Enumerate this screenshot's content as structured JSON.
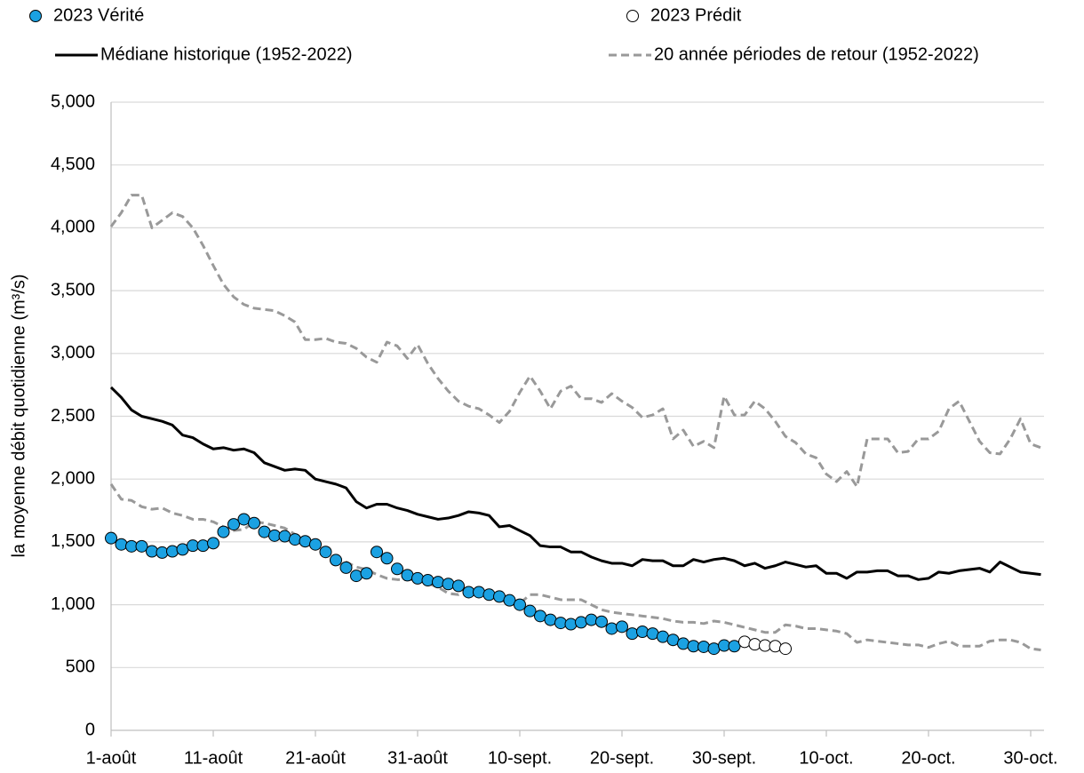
{
  "chart_data": {
    "type": "line",
    "y_label": "la moyenne débit quotidienne (m³/s)",
    "categories": [
      "1-août",
      null,
      null,
      null,
      null,
      null,
      null,
      null,
      null,
      null,
      "11-août",
      null,
      null,
      null,
      null,
      null,
      null,
      null,
      null,
      null,
      "21-août",
      null,
      null,
      null,
      null,
      null,
      null,
      null,
      null,
      null,
      "31-août",
      null,
      null,
      null,
      null,
      null,
      null,
      null,
      null,
      null,
      "10-sept.",
      null,
      null,
      null,
      null,
      null,
      null,
      null,
      null,
      null,
      "20-sept.",
      null,
      null,
      null,
      null,
      null,
      null,
      null,
      null,
      null,
      "30-sept.",
      null,
      null,
      null,
      null,
      null,
      null,
      null,
      null,
      null,
      "10-oct.",
      null,
      null,
      null,
      null,
      null,
      null,
      null,
      null,
      null,
      "20-oct.",
      null,
      null,
      null,
      null,
      null,
      null,
      null,
      null,
      null,
      "30-oct.",
      null
    ],
    "ylim": [
      0,
      5000
    ],
    "yticks": [
      0,
      500,
      {
        "value": 1000,
        "label": "1,000"
      },
      {
        "value": 1500,
        "label": "1,500"
      },
      {
        "value": 2000,
        "label": "2,000"
      },
      {
        "value": 2500,
        "label": "2,500"
      },
      {
        "value": 3000,
        "label": "3,000"
      },
      {
        "value": 3500,
        "label": "3,500"
      },
      {
        "value": 4000,
        "label": "4,000"
      },
      {
        "value": 4500,
        "label": "4,500"
      },
      {
        "value": 5000,
        "label": "5,000"
      }
    ],
    "grid": true,
    "series": [
      {
        "name": "Médiane historique (1952-2022)",
        "marker": "line",
        "color": "#000000",
        "dashed": false,
        "values": [
          2730,
          2650,
          2550,
          2500,
          2480,
          2460,
          2430,
          2350,
          2330,
          2280,
          2240,
          2250,
          2230,
          2240,
          2210,
          2130,
          2100,
          2070,
          2080,
          2070,
          2000,
          1980,
          1960,
          1930,
          1820,
          1770,
          1800,
          1800,
          1770,
          1750,
          1720,
          1700,
          1680,
          1690,
          1710,
          1740,
          1730,
          1710,
          1620,
          1630,
          1590,
          1550,
          1470,
          1460,
          1460,
          1420,
          1420,
          1380,
          1350,
          1330,
          1330,
          1310,
          1360,
          1350,
          1350,
          1310,
          1310,
          1360,
          1340,
          1360,
          1370,
          1350,
          1310,
          1330,
          1290,
          1310,
          1340,
          1320,
          1300,
          1310,
          1250,
          1250,
          1210,
          1260,
          1260,
          1270,
          1270,
          1230,
          1230,
          1200,
          1210,
          1260,
          1250,
          1270,
          1280,
          1290,
          1260,
          1340,
          1300,
          1260,
          1250,
          1240
        ]
      },
      {
        "name": "20 année périodes de retour (1952-2022)",
        "marker": "line",
        "color": "#999999",
        "dashed": true,
        "values": [
          4010,
          4120,
          4260,
          4260,
          4000,
          4060,
          4120,
          4090,
          4000,
          3860,
          3700,
          3550,
          3450,
          3390,
          3360,
          3350,
          3340,
          3300,
          3250,
          3110,
          3110,
          3120,
          3090,
          3080,
          3040,
          2970,
          2930,
          3090,
          3060,
          2960,
          3070,
          2920,
          2800,
          2700,
          2620,
          2580,
          2560,
          2510,
          2450,
          2540,
          2690,
          2820,
          2700,
          2560,
          2700,
          2740,
          2640,
          2640,
          2610,
          2680,
          2620,
          2570,
          2490,
          2510,
          2560,
          2320,
          2390,
          2260,
          2300,
          2250,
          2660,
          2510,
          2510,
          2620,
          2560,
          2460,
          2340,
          2290,
          2200,
          2170,
          2040,
          1980,
          2060,
          1940,
          2320,
          2320,
          2320,
          2210,
          2220,
          2320,
          2320,
          2380,
          2560,
          2620,
          2460,
          2300,
          2210,
          2200,
          2320,
          2480,
          2280,
          2250
        ]
      },
      {
        "marker": "line",
        "color": "#999999",
        "dashed": true,
        "values": [
          1960,
          1840,
          1830,
          1780,
          1760,
          1770,
          1730,
          1710,
          1680,
          1680,
          1660,
          1620,
          1590,
          1600,
          1660,
          1650,
          1630,
          1610,
          1560,
          1500,
          1470,
          1430,
          1380,
          1340,
          1300,
          1280,
          1240,
          1210,
          1200,
          1200,
          1200,
          1170,
          1140,
          1090,
          1080,
          1120,
          1100,
          1060,
          1050,
          1000,
          1010,
          1080,
          1080,
          1060,
          1040,
          1040,
          1040,
          1000,
          960,
          940,
          930,
          920,
          910,
          900,
          890,
          870,
          860,
          860,
          850,
          870,
          860,
          840,
          820,
          800,
          780,
          780,
          840,
          830,
          810,
          810,
          800,
          790,
          770,
          700,
          720,
          710,
          700,
          690,
          680,
          680,
          660,
          690,
          710,
          670,
          670,
          670,
          710,
          720,
          720,
          700,
          650,
          640
        ]
      },
      {
        "name": "2023 Vérité",
        "marker": "circle",
        "color": "#1ba1e2",
        "values": [
          1530,
          1480,
          1465,
          1465,
          1425,
          1415,
          1425,
          1440,
          1470,
          1470,
          1490,
          1580,
          1640,
          1680,
          1650,
          1580,
          1550,
          1545,
          1520,
          1505,
          1480,
          1420,
          1355,
          1295,
          1230,
          1250,
          1420,
          1370,
          1285,
          1235,
          1210,
          1195,
          1180,
          1165,
          1150,
          1100,
          1100,
          1080,
          1065,
          1035,
          1000,
          950,
          910,
          880,
          855,
          845,
          860,
          880,
          865,
          810,
          825,
          770,
          785,
          770,
          745,
          720,
          690,
          670,
          665,
          650,
          675,
          670,
          null,
          null,
          null,
          null,
          null,
          null,
          null,
          null,
          null,
          null,
          null,
          null,
          null,
          null,
          null,
          null,
          null,
          null,
          null,
          null,
          null,
          null,
          null,
          null,
          null,
          null,
          null,
          null,
          null,
          null
        ]
      },
      {
        "name": "2023 Prédit",
        "marker": "circle",
        "color": "#ffffff",
        "values": [
          null,
          null,
          null,
          null,
          null,
          null,
          null,
          null,
          null,
          null,
          null,
          null,
          null,
          null,
          null,
          null,
          null,
          null,
          null,
          null,
          null,
          null,
          null,
          null,
          null,
          null,
          null,
          null,
          null,
          null,
          null,
          null,
          null,
          null,
          null,
          null,
          null,
          null,
          null,
          null,
          null,
          null,
          null,
          null,
          null,
          null,
          null,
          null,
          null,
          null,
          null,
          null,
          null,
          null,
          null,
          null,
          null,
          null,
          null,
          null,
          null,
          null,
          705,
          685,
          675,
          670,
          650,
          null,
          null,
          null,
          null,
          null,
          null,
          null,
          null,
          null,
          null,
          null,
          null,
          null,
          null,
          null,
          null,
          null,
          null,
          null,
          null,
          null,
          null,
          null,
          null,
          null
        ]
      }
    ]
  }
}
